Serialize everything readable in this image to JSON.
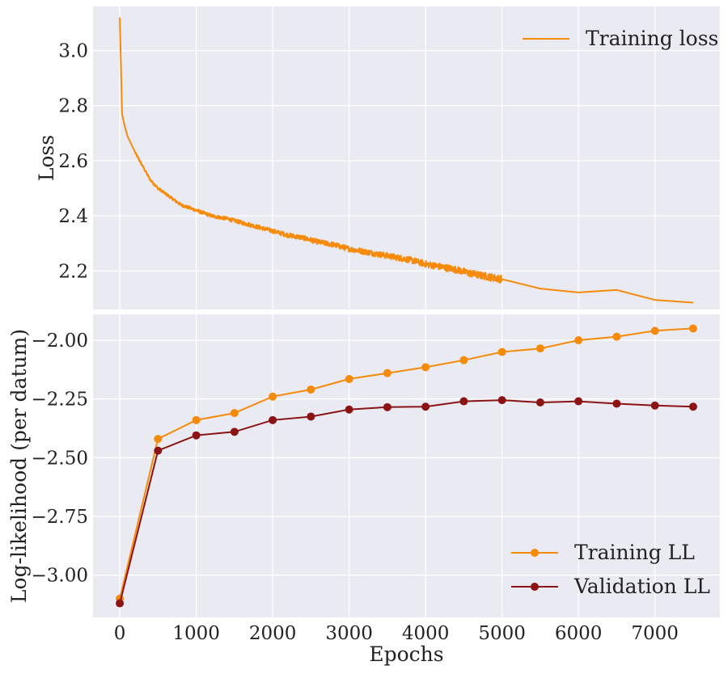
{
  "chart_data": [
    {
      "type": "line",
      "ylabel": "Loss",
      "xlim": [
        -350,
        7850
      ],
      "ylim": [
        2.06,
        3.16
      ],
      "x_ticks": [
        0,
        1000,
        2000,
        3000,
        4000,
        5000,
        6000,
        7000
      ],
      "y_ticks": [
        2.2,
        2.4,
        2.6,
        2.8,
        3.0
      ],
      "y_tick_labels": [
        "2.2",
        "2.4",
        "2.6",
        "2.8",
        "3.0"
      ],
      "grid": true,
      "legend_position": "top-right",
      "series": [
        {
          "name": "Training loss",
          "color": "#f58a0b",
          "noisy_until": 5000,
          "points": [
            [
              0,
              3.12
            ],
            [
              30,
              2.77
            ],
            [
              60,
              2.73
            ],
            [
              100,
              2.69
            ],
            [
              150,
              2.66
            ],
            [
              200,
              2.63
            ],
            [
              300,
              2.58
            ],
            [
              400,
              2.53
            ],
            [
              500,
              2.5
            ],
            [
              600,
              2.48
            ],
            [
              700,
              2.46
            ],
            [
              800,
              2.44
            ],
            [
              1000,
              2.42
            ],
            [
              1200,
              2.4
            ],
            [
              1400,
              2.39
            ],
            [
              1600,
              2.375
            ],
            [
              1800,
              2.36
            ],
            [
              2000,
              2.345
            ],
            [
              2200,
              2.33
            ],
            [
              2400,
              2.32
            ],
            [
              2600,
              2.305
            ],
            [
              2800,
              2.295
            ],
            [
              3000,
              2.28
            ],
            [
              3200,
              2.27
            ],
            [
              3400,
              2.26
            ],
            [
              3600,
              2.25
            ],
            [
              3800,
              2.24
            ],
            [
              4000,
              2.225
            ],
            [
              4200,
              2.215
            ],
            [
              4400,
              2.205
            ],
            [
              4600,
              2.19
            ],
            [
              4800,
              2.18
            ],
            [
              5000,
              2.17
            ],
            [
              5500,
              2.136
            ],
            [
              6000,
              2.122
            ],
            [
              6500,
              2.131
            ],
            [
              7000,
              2.095
            ],
            [
              7500,
              2.085
            ]
          ]
        }
      ]
    },
    {
      "type": "line",
      "xlabel": "Epochs",
      "ylabel": "Log-likelihood (per datum)",
      "xlim": [
        -350,
        7850
      ],
      "ylim": [
        -3.18,
        -1.89
      ],
      "x_ticks": [
        0,
        1000,
        2000,
        3000,
        4000,
        5000,
        6000,
        7000
      ],
      "x_tick_labels": [
        "0",
        "1000",
        "2000",
        "3000",
        "4000",
        "5000",
        "6000",
        "7000"
      ],
      "y_ticks": [
        -3.0,
        -2.75,
        -2.5,
        -2.25,
        -2.0
      ],
      "y_tick_labels": [
        "−3.00",
        "−2.75",
        "−2.50",
        "−2.25",
        "−2.00"
      ],
      "grid": true,
      "legend_position": "bottom-right",
      "series": [
        {
          "name": "Training LL",
          "color": "#f58a0b",
          "x": [
            0,
            500,
            1000,
            1500,
            2000,
            2500,
            3000,
            3500,
            4000,
            4500,
            5000,
            5500,
            6000,
            6500,
            7000,
            7500
          ],
          "y": [
            -3.1,
            -2.42,
            -2.34,
            -2.31,
            -2.24,
            -2.21,
            -2.165,
            -2.14,
            -2.115,
            -2.085,
            -2.05,
            -2.035,
            -2.0,
            -1.985,
            -1.96,
            -1.95
          ]
        },
        {
          "name": "Validation LL",
          "color": "#8b1313",
          "x": [
            0,
            500,
            1000,
            1500,
            2000,
            2500,
            3000,
            3500,
            4000,
            4500,
            5000,
            5500,
            6000,
            6500,
            7000,
            7500
          ],
          "y": [
            -3.12,
            -2.47,
            -2.405,
            -2.39,
            -2.34,
            -2.325,
            -2.295,
            -2.285,
            -2.283,
            -2.26,
            -2.255,
            -2.265,
            -2.26,
            -2.27,
            -2.278,
            -2.283
          ]
        }
      ]
    }
  ]
}
